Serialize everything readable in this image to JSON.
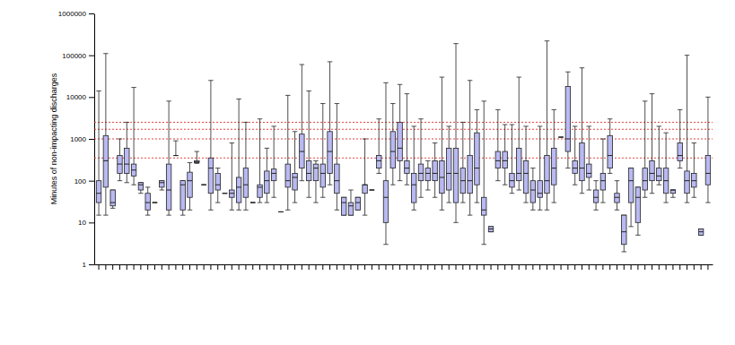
{
  "chart_data": {
    "type": "box",
    "y_label": "Minutes of non-impacting discharges",
    "log": "y",
    "color": "#b9b9f2",
    "categories": [
      null,
      null,
      null,
      null,
      null,
      null,
      null,
      null,
      null,
      null,
      null,
      null,
      null,
      null,
      null,
      null,
      null,
      null,
      null,
      null,
      null,
      null,
      null,
      null,
      null,
      null,
      null,
      null,
      null,
      null,
      null,
      null,
      null,
      null,
      null,
      null,
      null,
      null,
      null,
      null,
      null,
      null,
      null,
      null,
      null,
      null,
      null,
      null,
      null,
      null,
      null,
      null,
      null,
      null,
      null,
      null,
      null,
      null,
      null,
      null,
      null,
      null,
      null,
      null,
      null,
      null,
      null,
      null,
      null,
      null,
      null,
      null,
      null,
      null,
      null,
      null,
      null,
      null,
      null,
      null,
      null,
      null,
      null,
      null,
      null,
      null,
      null,
      null
    ],
    "min": [
      15,
      15,
      22,
      100,
      90,
      80,
      50,
      15,
      30,
      60,
      15,
      400,
      15,
      20,
      260,
      80,
      20,
      30,
      50,
      20,
      20,
      20,
      30,
      30,
      30,
      40,
      18,
      20,
      30,
      100,
      40,
      30,
      40,
      80,
      20,
      15,
      15,
      20,
      15,
      60,
      150,
      3,
      80,
      100,
      80,
      20,
      40,
      60,
      40,
      20,
      30,
      10,
      30,
      15,
      30,
      3,
      6,
      100,
      80,
      50,
      60,
      30,
      20,
      20,
      20,
      30,
      1100,
      200,
      80,
      50,
      60,
      20,
      30,
      150,
      20,
      2,
      8,
      5,
      40,
      50,
      80,
      30,
      40,
      200,
      30,
      40,
      5,
      30
    ],
    "q1": [
      30,
      70,
      25,
      150,
      150,
      130,
      60,
      20,
      30,
      70,
      20,
      400,
      20,
      40,
      270,
      80,
      50,
      60,
      50,
      40,
      30,
      40,
      30,
      40,
      50,
      100,
      18,
      70,
      60,
      200,
      100,
      100,
      70,
      150,
      50,
      15,
      15,
      20,
      50,
      60,
      200,
      10,
      200,
      300,
      150,
      30,
      100,
      100,
      100,
      50,
      60,
      30,
      50,
      50,
      80,
      15,
      6,
      200,
      200,
      70,
      100,
      50,
      30,
      40,
      50,
      80,
      1100,
      500,
      150,
      100,
      120,
      30,
      60,
      200,
      30,
      3,
      30,
      10,
      60,
      100,
      100,
      50,
      50,
      300,
      50,
      70,
      5,
      80
    ],
    "median": [
      50,
      300,
      30,
      250,
      250,
      180,
      80,
      30,
      30,
      90,
      60,
      400,
      80,
      100,
      280,
      80,
      200,
      80,
      50,
      50,
      70,
      80,
      30,
      70,
      100,
      150,
      18,
      100,
      120,
      500,
      150,
      200,
      150,
      500,
      100,
      30,
      25,
      30,
      80,
      60,
      300,
      40,
      500,
      600,
      200,
      80,
      150,
      150,
      150,
      120,
      150,
      150,
      100,
      100,
      200,
      20,
      7,
      300,
      300,
      100,
      150,
      150,
      60,
      50,
      100,
      200,
      1100,
      1000,
      200,
      200,
      150,
      40,
      100,
      400,
      40,
      6,
      100,
      40,
      100,
      150,
      130,
      100,
      60,
      400,
      100,
      100,
      6,
      150
    ],
    "q3": [
      100,
      1200,
      60,
      400,
      600,
      250,
      90,
      50,
      30,
      100,
      250,
      400,
      100,
      160,
      300,
      80,
      350,
      150,
      50,
      60,
      120,
      200,
      30,
      80,
      170,
      190,
      18,
      250,
      150,
      1300,
      300,
      250,
      250,
      1500,
      250,
      40,
      30,
      40,
      80,
      60,
      400,
      100,
      1500,
      2500,
      300,
      150,
      250,
      200,
      300,
      300,
      600,
      600,
      200,
      400,
      1400,
      40,
      8,
      500,
      500,
      150,
      600,
      300,
      100,
      100,
      400,
      600,
      1100,
      18000,
      300,
      800,
      250,
      60,
      150,
      1200,
      50,
      15,
      200,
      70,
      200,
      300,
      200,
      200,
      60,
      800,
      170,
      150,
      7,
      400
    ],
    "max": [
      14000,
      110000,
      60,
      1000,
      2500,
      17000,
      90,
      70,
      30,
      100,
      8000,
      900,
      100,
      270,
      500,
      80,
      25000,
      200,
      50,
      800,
      9000,
      2500,
      30,
      3000,
      600,
      2000,
      18,
      11000,
      1500,
      60000,
      14000,
      300,
      7000,
      70000,
      7000,
      40,
      60,
      40,
      1000,
      60,
      3000,
      22000,
      7000,
      20000,
      12000,
      2000,
      3000,
      300,
      800,
      30000,
      2000,
      190000,
      2500,
      25000,
      5000,
      8000,
      8,
      5000,
      2200,
      2200,
      30000,
      2000,
      200,
      2000,
      220000,
      5000,
      1100,
      40000,
      2000,
      50000,
      2000,
      100,
      1000,
      3000,
      100,
      15,
      200,
      70,
      8000,
      12000,
      2000,
      1400,
      60,
      5000,
      100000,
      800,
      7,
      10000
    ],
    "reference_lines": [
      2500,
      1700,
      1000,
      350
    ],
    "ylim": [
      1,
      1000000
    ],
    "yticks": [
      1,
      10,
      100,
      1000,
      10000,
      100000,
      1000000
    ]
  }
}
